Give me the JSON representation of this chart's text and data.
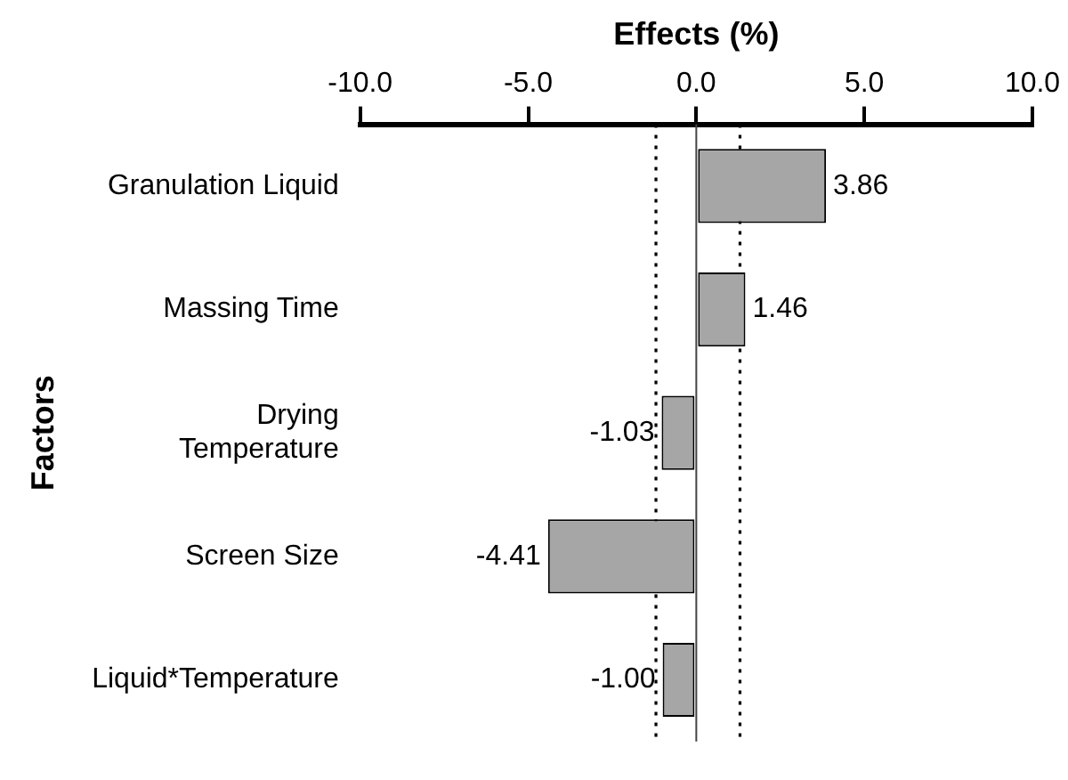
{
  "chart_data": {
    "type": "bar",
    "orientation": "horizontal",
    "xlabel": "Effects (%)",
    "ylabel": "Factors",
    "categories": [
      "Granulation Liquid",
      "Massing Time",
      "Drying\nTemperature",
      "Screen Size",
      "Liquid*Temperature"
    ],
    "values": [
      3.86,
      1.46,
      -1.03,
      -4.41,
      -1.0
    ],
    "value_labels": [
      "3.86",
      "1.46",
      "-1.03",
      "-4.41",
      "-1.00"
    ],
    "color": "#a6a6a6",
    "xlim": [
      -10,
      10
    ],
    "xticks": [
      {
        "value": -10,
        "label": "-10.0"
      },
      {
        "value": -5,
        "label": "-5.0"
      },
      {
        "value": 0,
        "label": "0.0"
      },
      {
        "value": 5,
        "label": "5.0"
      },
      {
        "value": 10,
        "label": "10.0"
      }
    ],
    "ref_lines": [
      {
        "axis": "x",
        "value": 0,
        "line_style": "solid",
        "color": "#444444"
      },
      {
        "axis": "x",
        "value": -1.2,
        "line_style": "dotted",
        "color": "#000000"
      },
      {
        "axis": "x",
        "value": 1.3,
        "line_style": "dotted",
        "color": "#000000"
      }
    ],
    "grid": false,
    "legend": false
  }
}
